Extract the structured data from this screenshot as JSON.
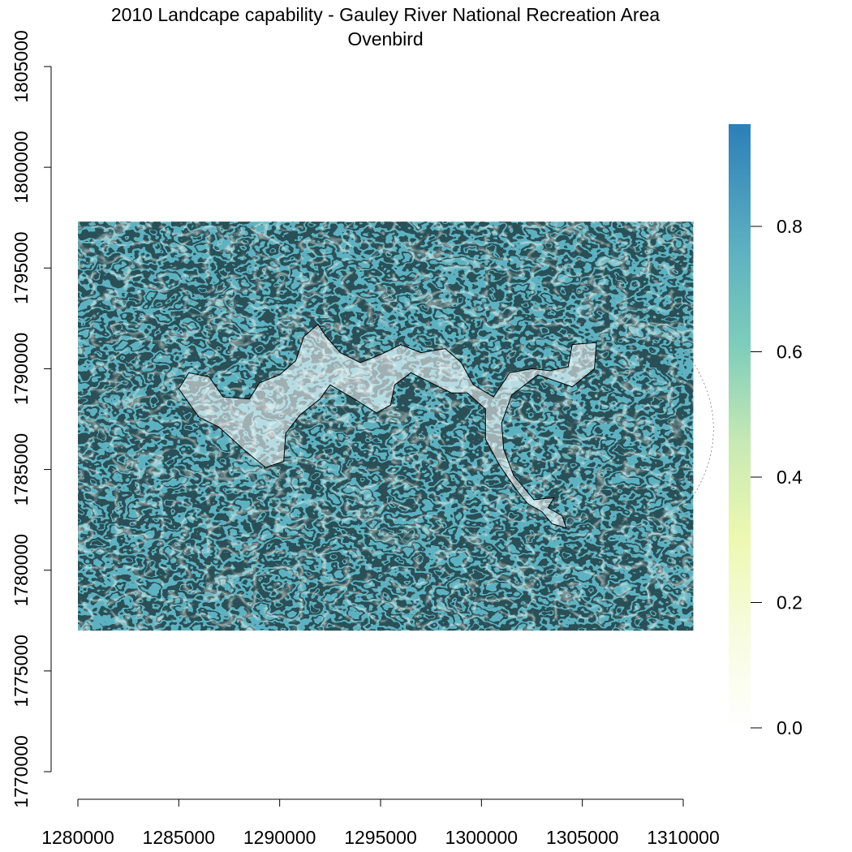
{
  "title": "2010 Landcape capability - Gauley River National Recreation Area",
  "subtitle": "Ovenbird",
  "chart_data": {
    "type": "heatmap",
    "title": "2010 Landcape capability - Gauley River National Recreation Area",
    "subtitle": "Ovenbird",
    "xlim": [
      1280000,
      1310000
    ],
    "ylim": [
      1770000,
      1805000
    ],
    "x_ticks": [
      1280000,
      1285000,
      1290000,
      1295000,
      1300000,
      1305000,
      1310000
    ],
    "y_ticks": [
      1770000,
      1775000,
      1780000,
      1785000,
      1790000,
      1795000,
      1800000,
      1805000
    ],
    "raster_extent": {
      "xmin": 1280000,
      "xmax": 1310500,
      "ymin": 1777000,
      "ymax": 1797300
    },
    "value_range": [
      0.0,
      0.95
    ],
    "colorbar": {
      "ticks": [
        0.0,
        0.2,
        0.4,
        0.6,
        0.8
      ],
      "tick_labels": [
        "0.0",
        "0.2",
        "0.4",
        "0.6",
        "0.8"
      ],
      "colors": [
        {
          "value": 0.0,
          "color": "#ffffff"
        },
        {
          "value": 0.15,
          "color": "#f7fcdf"
        },
        {
          "value": 0.3,
          "color": "#edf8b1"
        },
        {
          "value": 0.45,
          "color": "#c7e9b4"
        },
        {
          "value": 0.6,
          "color": "#7fcdbb"
        },
        {
          "value": 0.75,
          "color": "#5eb1c0"
        },
        {
          "value": 0.95,
          "color": "#2c7fb8"
        }
      ]
    },
    "grid": false,
    "legend": "right"
  },
  "x_tick_labels": [
    "1280000",
    "1285000",
    "1290000",
    "1295000",
    "1300000",
    "1305000",
    "1310000"
  ],
  "y_tick_labels": [
    "1770000",
    "1775000",
    "1780000",
    "1785000",
    "1790000",
    "1795000",
    "1800000",
    "1805000"
  ],
  "colors": {
    "low": "#ffffff",
    "mid": "#7fcdbb",
    "high": "#2c7fb8",
    "boundary": "#000000"
  }
}
